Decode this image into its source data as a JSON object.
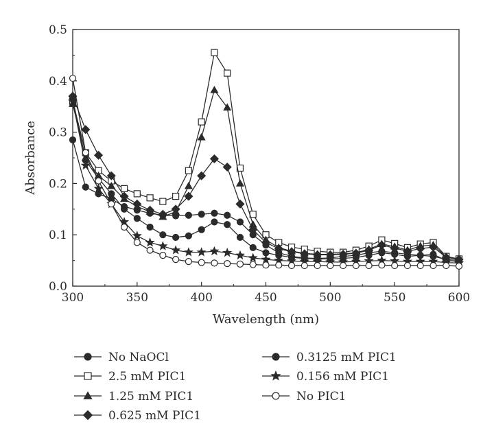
{
  "chart_data": {
    "type": "line",
    "xlabel": "Wavelength (nm)",
    "ylabel": "Absorbance",
    "xlim": [
      300,
      600
    ],
    "ylim": [
      0.0,
      0.5
    ],
    "x_ticks": [
      "300",
      "350",
      "400",
      "450",
      "500",
      "550",
      "600"
    ],
    "x_tick_values": [
      300,
      350,
      400,
      450,
      500,
      550,
      600
    ],
    "y_ticks": [
      "0.0",
      "0.1",
      "0.2",
      "0.3",
      "0.4",
      "0.5"
    ],
    "y_tick_values": [
      0.0,
      0.1,
      0.2,
      0.3,
      0.4,
      0.5
    ],
    "grid": false,
    "legend_position": "bottom",
    "x": [
      300,
      310,
      320,
      330,
      340,
      350,
      360,
      370,
      380,
      390,
      400,
      410,
      420,
      430,
      440,
      450,
      460,
      470,
      480,
      490,
      500,
      510,
      520,
      530,
      540,
      550,
      560,
      570,
      580,
      590,
      600
    ],
    "series": [
      {
        "name": "No NaOCl",
        "marker": "filled-circle",
        "values": [
          0.285,
          0.193,
          0.18,
          0.17,
          0.155,
          0.148,
          0.142,
          0.138,
          0.137,
          0.138,
          0.14,
          0.142,
          0.138,
          0.125,
          0.1,
          0.08,
          0.065,
          0.058,
          0.055,
          0.054,
          0.055,
          0.058,
          0.06,
          0.065,
          0.068,
          0.065,
          0.062,
          0.06,
          0.058,
          0.052,
          0.05
        ]
      },
      {
        "name": "2.5 mM PIC1",
        "marker": "open-square",
        "values": [
          0.36,
          0.26,
          0.225,
          0.205,
          0.19,
          0.18,
          0.172,
          0.165,
          0.175,
          0.225,
          0.32,
          0.455,
          0.415,
          0.23,
          0.14,
          0.1,
          0.085,
          0.076,
          0.072,
          0.068,
          0.066,
          0.066,
          0.07,
          0.078,
          0.09,
          0.083,
          0.075,
          0.082,
          0.085,
          0.058,
          0.053
        ]
      },
      {
        "name": "1.25 mM PIC1",
        "marker": "filled-triangle",
        "values": [
          0.355,
          0.25,
          0.215,
          0.195,
          0.17,
          0.155,
          0.145,
          0.135,
          0.145,
          0.195,
          0.29,
          0.382,
          0.348,
          0.2,
          0.12,
          0.09,
          0.075,
          0.068,
          0.064,
          0.062,
          0.062,
          0.063,
          0.065,
          0.072,
          0.082,
          0.077,
          0.07,
          0.078,
          0.08,
          0.057,
          0.052
        ]
      },
      {
        "name": "0.625 mM PIC1",
        "marker": "filled-diamond",
        "values": [
          0.37,
          0.305,
          0.255,
          0.215,
          0.175,
          0.16,
          0.148,
          0.14,
          0.15,
          0.175,
          0.215,
          0.248,
          0.232,
          0.16,
          0.11,
          0.085,
          0.073,
          0.067,
          0.063,
          0.061,
          0.061,
          0.062,
          0.064,
          0.07,
          0.08,
          0.074,
          0.068,
          0.073,
          0.076,
          0.056,
          0.052
        ]
      },
      {
        "name": "0.3125 mM PIC1",
        "marker": "filled-circle",
        "values": [
          0.365,
          0.245,
          0.21,
          0.18,
          0.15,
          0.132,
          0.115,
          0.1,
          0.095,
          0.098,
          0.11,
          0.125,
          0.12,
          0.095,
          0.075,
          0.065,
          0.06,
          0.056,
          0.054,
          0.053,
          0.053,
          0.054,
          0.056,
          0.06,
          0.065,
          0.062,
          0.058,
          0.06,
          0.062,
          0.05,
          0.048
        ]
      },
      {
        "name": "0.156 mM PIC1",
        "marker": "star",
        "values": [
          0.36,
          0.235,
          0.19,
          0.16,
          0.125,
          0.098,
          0.085,
          0.078,
          0.07,
          0.066,
          0.066,
          0.068,
          0.065,
          0.06,
          0.055,
          0.052,
          0.05,
          0.049,
          0.048,
          0.048,
          0.047,
          0.047,
          0.048,
          0.049,
          0.05,
          0.049,
          0.048,
          0.048,
          0.048,
          0.046,
          0.045
        ]
      },
      {
        "name": "No PIC1",
        "marker": "open-circle",
        "values": [
          0.405,
          0.26,
          0.205,
          0.16,
          0.115,
          0.085,
          0.07,
          0.06,
          0.052,
          0.048,
          0.046,
          0.045,
          0.044,
          0.043,
          0.042,
          0.041,
          0.041,
          0.04,
          0.04,
          0.04,
          0.04,
          0.04,
          0.04,
          0.04,
          0.041,
          0.04,
          0.04,
          0.04,
          0.04,
          0.04,
          0.039
        ]
      }
    ]
  }
}
